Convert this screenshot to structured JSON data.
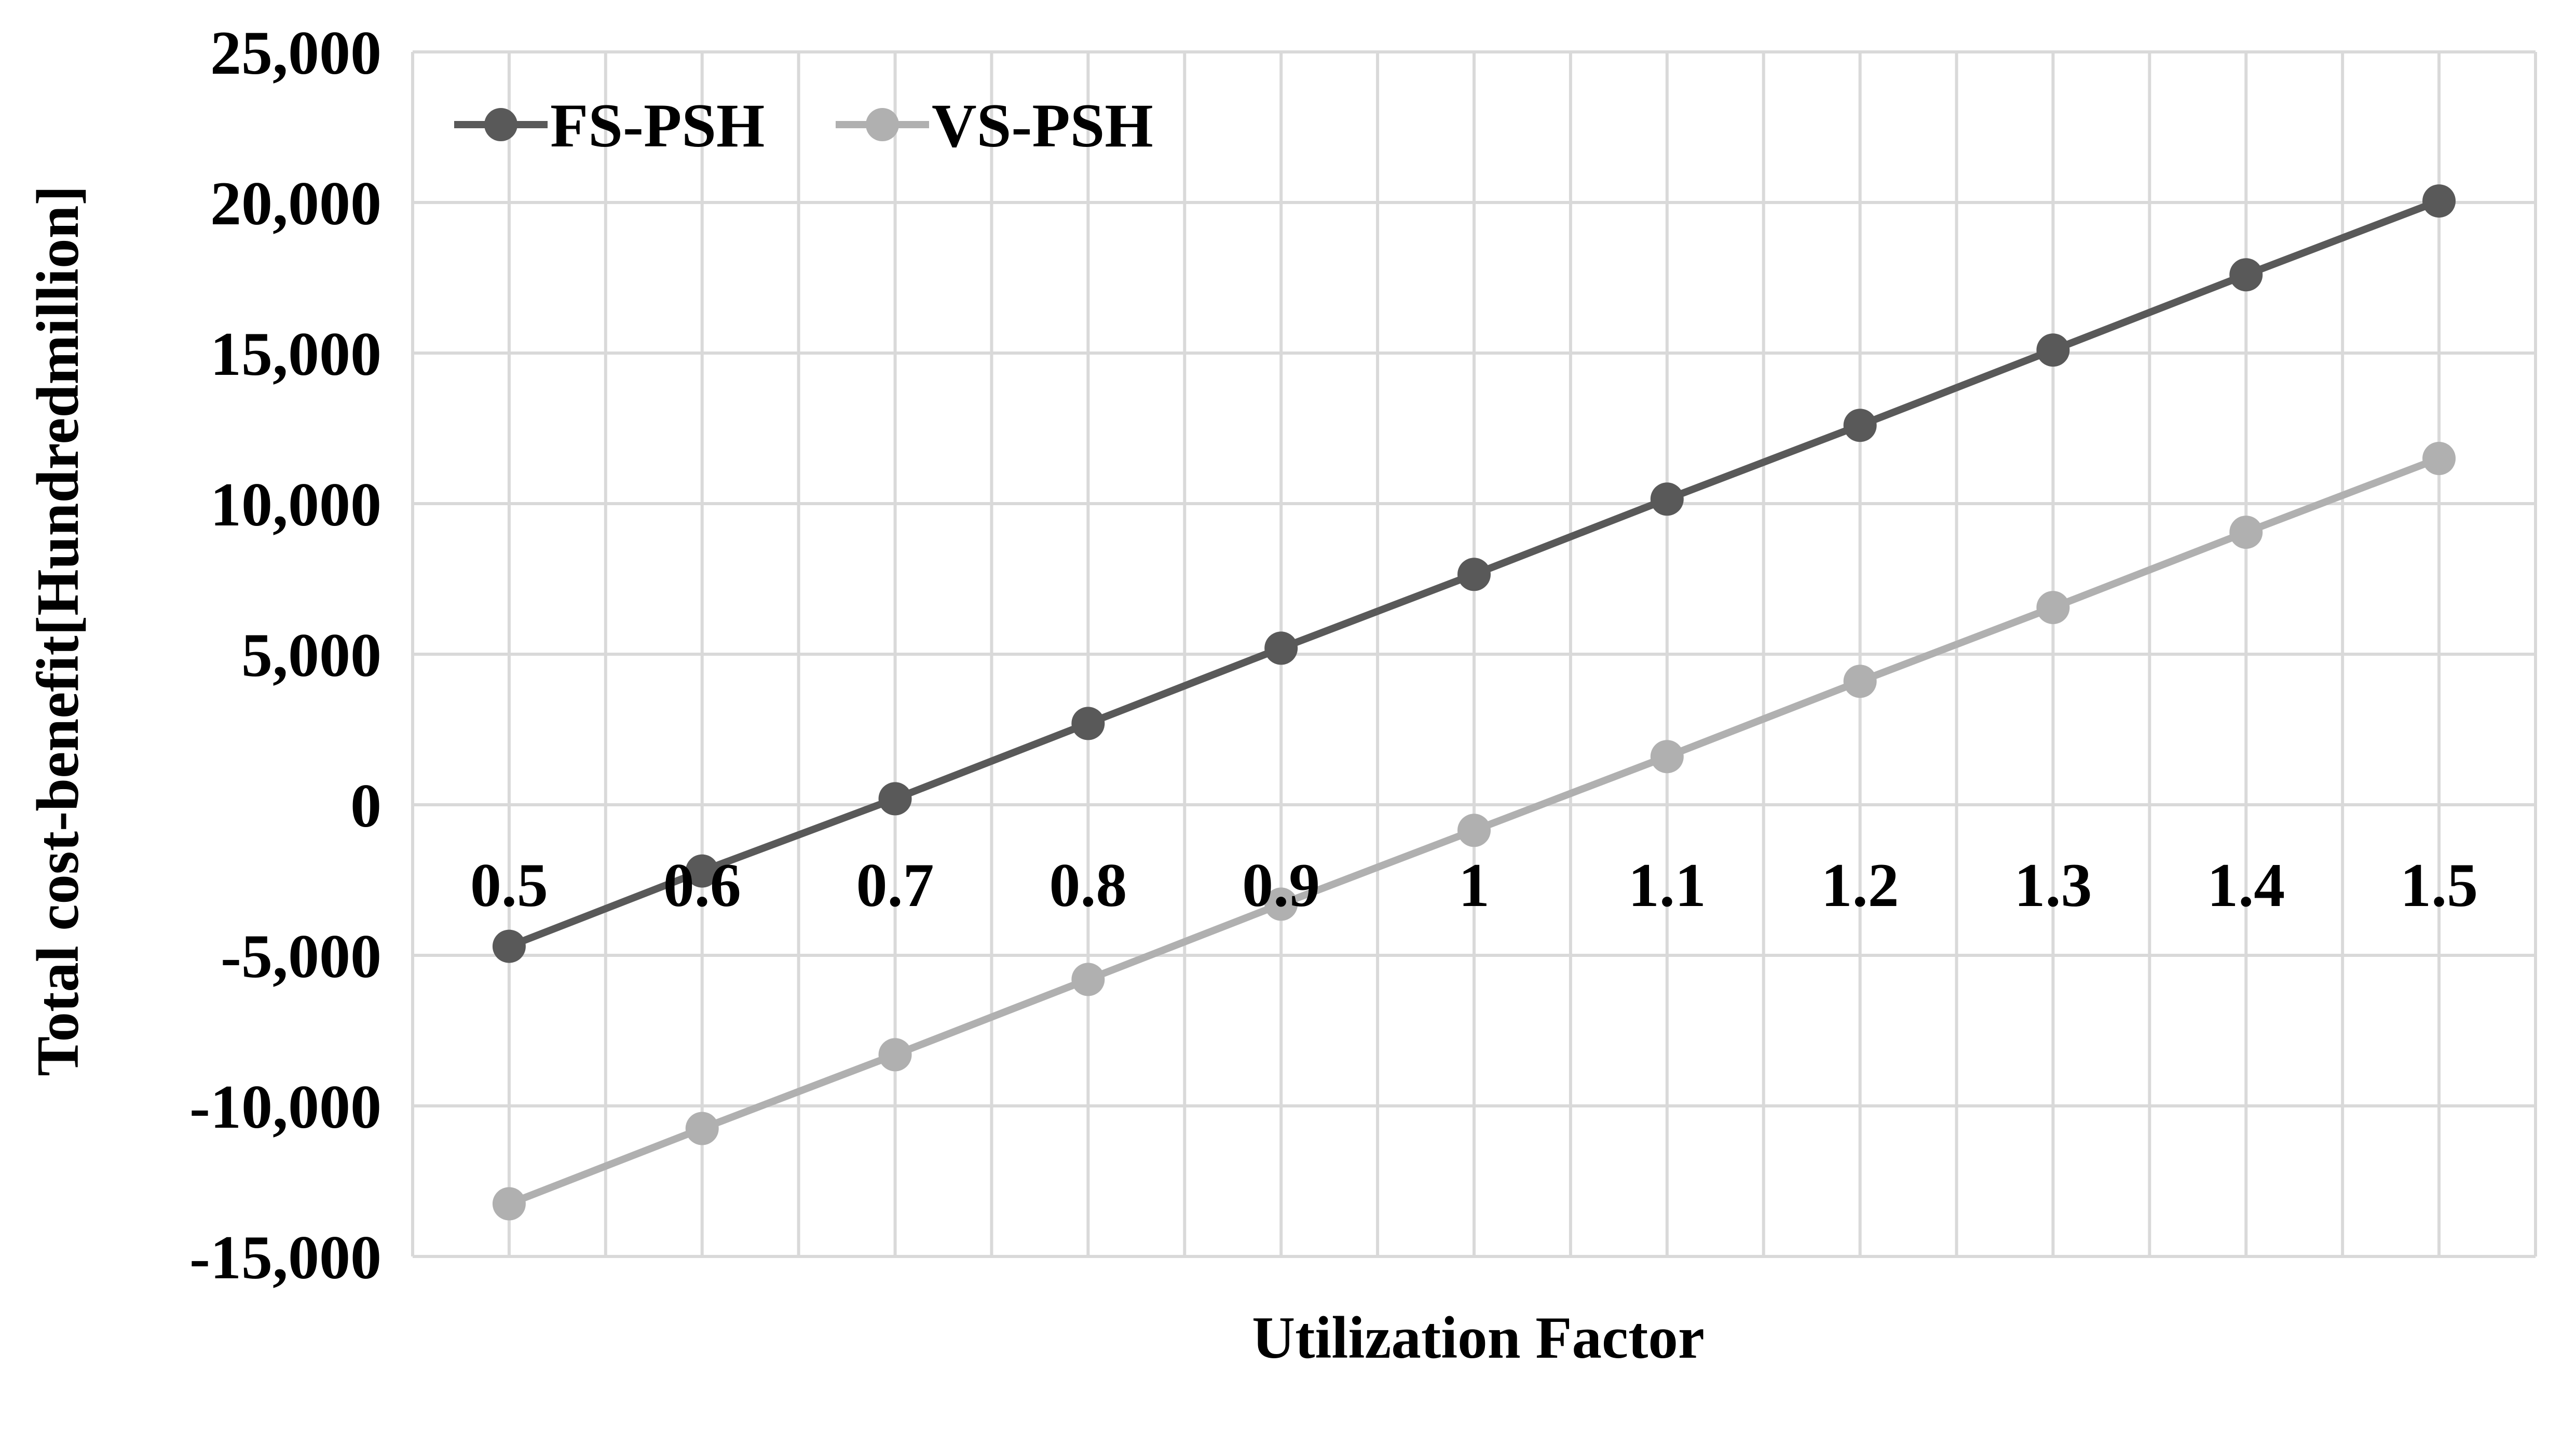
{
  "chart_data": {
    "type": "line",
    "title": "",
    "xlabel": "Utilization Factor",
    "ylabel": "Total cost-benefit[Hundredmillion]",
    "x": [
      "0.5",
      "0.6",
      "0.7",
      "0.8",
      "0.9",
      "1",
      "1.1",
      "1.2",
      "1.3",
      "1.4",
      "1.5"
    ],
    "yticks": [
      "25,000",
      "20,000",
      "15,000",
      "10,000",
      "5,000",
      "0",
      "-5,000",
      "-10,000",
      "-15,000"
    ],
    "ylim": [
      -15000,
      25000
    ],
    "grid": true,
    "legend_position": "top-left",
    "series": [
      {
        "name": "FS-PSH",
        "color": "#595959",
        "values": [
          -4700,
          -2200,
          200,
          2700,
          5200,
          7650,
          10150,
          12600,
          15100,
          17600,
          20050
        ]
      },
      {
        "name": "VS-PSH",
        "color": "#b0b0b0",
        "values": [
          -13250,
          -10750,
          -8300,
          -5800,
          -3300,
          -850,
          1600,
          4100,
          6550,
          9050,
          11500
        ]
      }
    ]
  }
}
